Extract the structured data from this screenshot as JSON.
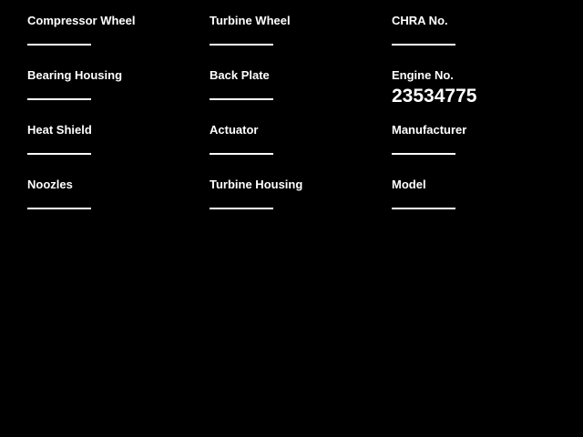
{
  "theme": {
    "background_color": "#000000",
    "text_color": "#ffffff",
    "underline_color": "#ffffff"
  },
  "form": {
    "fields": [
      {
        "label": "Compressor Wheel",
        "value": ""
      },
      {
        "label": "Turbine Wheel",
        "value": ""
      },
      {
        "label": "CHRA No.",
        "value": ""
      },
      {
        "label": "Bearing Housing",
        "value": ""
      },
      {
        "label": "Back Plate",
        "value": ""
      },
      {
        "label": "Engine No.",
        "value": "23534775"
      },
      {
        "label": "Heat Shield",
        "value": ""
      },
      {
        "label": "Actuator",
        "value": ""
      },
      {
        "label": "Manufacturer",
        "value": ""
      },
      {
        "label": "Noozles",
        "value": ""
      },
      {
        "label": "Turbine Housing",
        "value": ""
      },
      {
        "label": "Model",
        "value": ""
      }
    ]
  }
}
